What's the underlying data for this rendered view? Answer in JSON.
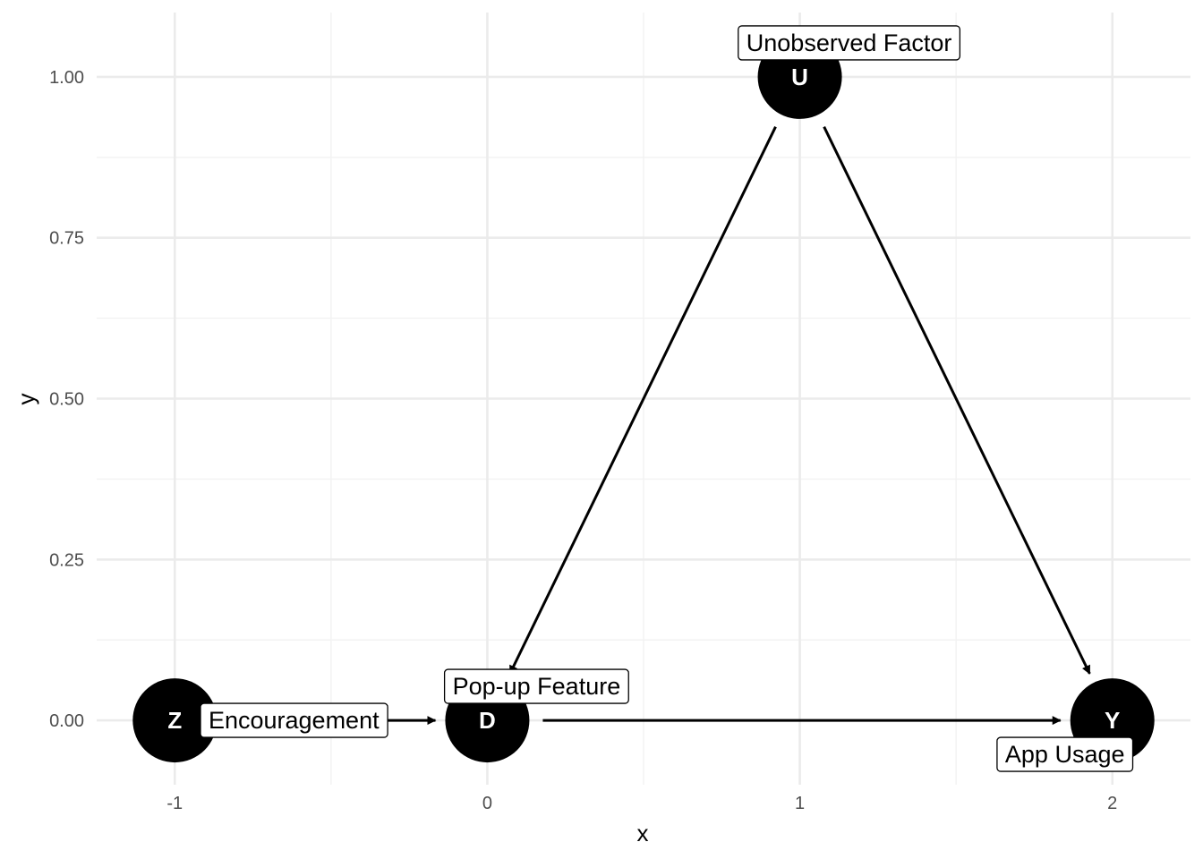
{
  "axes": {
    "xlabel": "x",
    "ylabel": "y",
    "x_ticks": [
      {
        "value": -1,
        "label": "-1"
      },
      {
        "value": 0,
        "label": "0"
      },
      {
        "value": 1,
        "label": "1"
      },
      {
        "value": 2,
        "label": "2"
      }
    ],
    "y_ticks": [
      {
        "value": 0.0,
        "label": "0.00"
      },
      {
        "value": 0.25,
        "label": "0.25"
      },
      {
        "value": 0.5,
        "label": "0.50"
      },
      {
        "value": 0.75,
        "label": "0.75"
      },
      {
        "value": 1.0,
        "label": "1.00"
      }
    ],
    "x_minor": [
      -0.5,
      0.5,
      1.5
    ],
    "y_minor": [
      0.125,
      0.375,
      0.625,
      0.875
    ],
    "xlim": [
      -1.25,
      2.25
    ],
    "ylim": [
      -0.1,
      1.1
    ]
  },
  "nodes": [
    {
      "id": "Z",
      "letter": "Z",
      "x": -1,
      "y": 0,
      "label": "Encouragement"
    },
    {
      "id": "D",
      "letter": "D",
      "x": 0,
      "y": 0,
      "label": "Pop-up Feature"
    },
    {
      "id": "U",
      "letter": "U",
      "x": 1,
      "y": 1,
      "label": "Unobserved Factor"
    },
    {
      "id": "Y",
      "letter": "Y",
      "x": 2,
      "y": 0,
      "label": "App Usage"
    }
  ],
  "edges": [
    {
      "from": "Z",
      "to": "D"
    },
    {
      "from": "D",
      "to": "Y"
    },
    {
      "from": "U",
      "to": "D"
    },
    {
      "from": "U",
      "to": "Y"
    }
  ],
  "colors": {
    "node_fill": "#000000",
    "node_text": "#ffffff",
    "grid": "#ebebeb",
    "background": "#ffffff"
  }
}
